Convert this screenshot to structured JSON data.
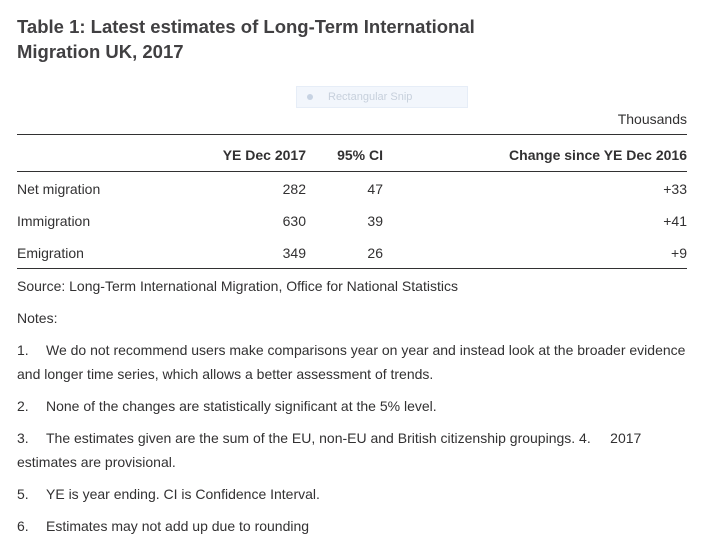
{
  "title": "Table 1: Latest estimates of Long-Term International Migration UK, 2017",
  "overlay": {
    "label": "Rectangular Snip"
  },
  "table": {
    "units": "Thousands",
    "headers": [
      "",
      "YE Dec 2017",
      "95% CI",
      "Change since YE Dec 2016"
    ],
    "rows": [
      {
        "label": "Net migration",
        "estimate": "282",
        "ci": "47",
        "change": "+33"
      },
      {
        "label": "Immigration",
        "estimate": "630",
        "ci": "39",
        "change": "+41"
      },
      {
        "label": "Emigration",
        "estimate": "349",
        "ci": "26",
        "change": "+9"
      }
    ]
  },
  "source": "Source: Long-Term International Migration, Office for National Statistics",
  "notes_heading": "Notes:",
  "notes": [
    {
      "num": "1.",
      "text": "We do not recommend users make comparisons year on year and instead look at the broader evidence and longer time series, which allows a better assessment of trends."
    },
    {
      "num": "2.",
      "text": "None of the changes are statistically significant at the 5% level."
    },
    {
      "num": "3.",
      "text": "The estimates given are the sum of the EU, non-EU and British citizenship groupings. 4.     2017 estimates are provisional."
    },
    {
      "num": "5.",
      "text": "YE is year ending. CI is Confidence Interval."
    },
    {
      "num": "6.",
      "text": "Estimates may not add up due to rounding"
    }
  ]
}
